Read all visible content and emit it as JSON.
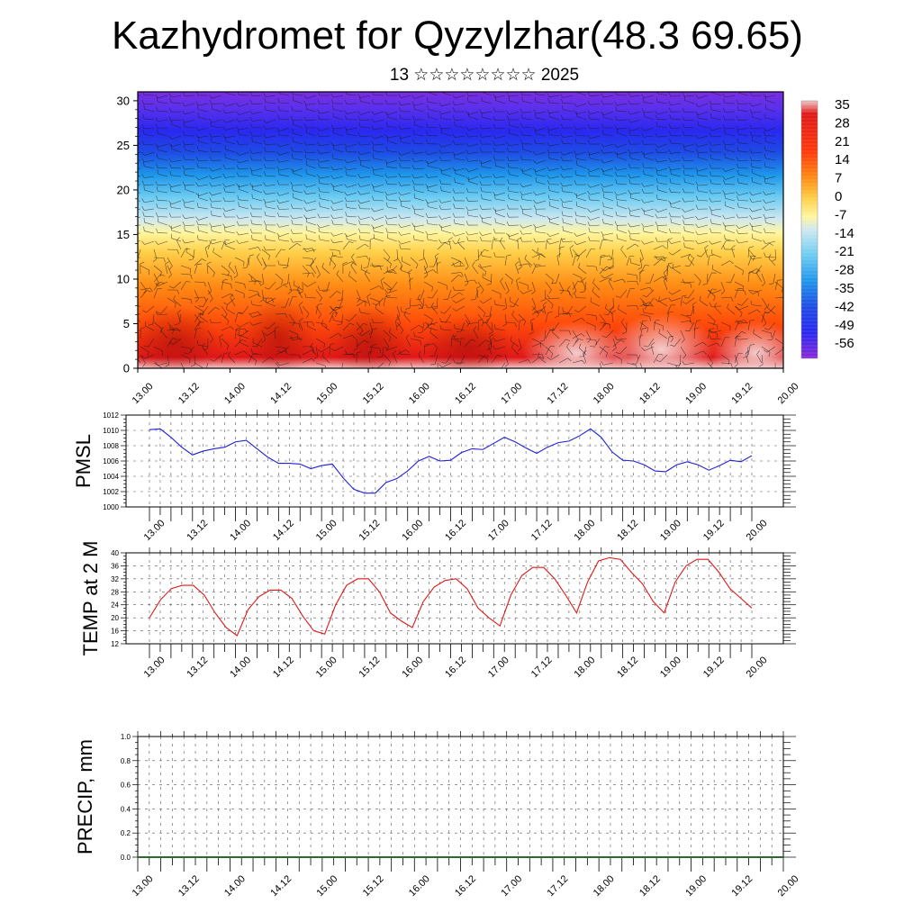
{
  "title": "Kazhydromet for Qyzylzhar(48.3 69.65)",
  "subtitle": "13 ☆☆☆☆☆☆☆☆ 2025",
  "chart_data": [
    {
      "type": "heatmap",
      "name": "Temperature / wind cross-section",
      "x_tick_labels": [
        "13.00",
        "13.12",
        "14.00",
        "14.12",
        "15.00",
        "15.12",
        "16.00",
        "16.12",
        "17.00",
        "17.12",
        "18.00",
        "18.12",
        "19.00",
        "19.12",
        "20.00"
      ],
      "y_tick_labels": [
        "0",
        "5",
        "10",
        "15",
        "20",
        "25",
        "30"
      ],
      "ylim": [
        0,
        31
      ],
      "colorbar_labels": [
        "35",
        "28",
        "21",
        "14",
        "7",
        "0",
        "-7",
        "-14",
        "-21",
        "-28",
        "-35",
        "-42",
        "-49",
        "-56"
      ],
      "colors": [
        "#f4d0d0",
        "#e8301c",
        "#ff7a12",
        "#ffd44a",
        "#fff8a0",
        "#cfe8f0",
        "#5cc8f0",
        "#1e8ce8",
        "#1e40e0",
        "#2a28f0",
        "#6a2ee8",
        "#8a2ad8"
      ],
      "wind_barbs": true
    },
    {
      "type": "line",
      "ylabel": "PMSL",
      "ylim": [
        1000,
        1012
      ],
      "y_tick_labels": [
        "1012",
        "1010",
        "1008",
        "1006",
        "1004",
        "1002",
        "1000"
      ],
      "x_tick_labels": [
        "13.00",
        "13.12",
        "14.00",
        "14.12",
        "15.00",
        "15.12",
        "16.00",
        "16.12",
        "17.00",
        "17.12",
        "18.00",
        "18.12",
        "19.00",
        "19.12",
        "20.00"
      ],
      "line_color": "#1f1fd8",
      "values": [
        1010.1,
        1010.2,
        1009.1,
        1007.8,
        1006.8,
        1007.3,
        1007.6,
        1007.8,
        1008.5,
        1008.7,
        1007.6,
        1006.5,
        1005.7,
        1005.7,
        1005.6,
        1005.0,
        1005.4,
        1005.6,
        1003.8,
        1002.3,
        1001.8,
        1001.8,
        1003.2,
        1003.7,
        1004.7,
        1006.0,
        1006.6,
        1006.0,
        1006.1,
        1007.1,
        1007.6,
        1007.5,
        1008.3,
        1009.1,
        1008.5,
        1007.7,
        1007.0,
        1007.8,
        1008.4,
        1008.6,
        1009.3,
        1010.2,
        1009.1,
        1007.2,
        1006.1,
        1006.0,
        1005.5,
        1004.7,
        1004.6,
        1005.5,
        1005.9,
        1005.5,
        1004.8,
        1005.4,
        1006.1,
        1005.9,
        1006.7
      ]
    },
    {
      "type": "line",
      "ylabel": "TEMP at 2 M",
      "ylim": [
        12,
        40
      ],
      "y_tick_labels": [
        "40",
        "36",
        "32",
        "28",
        "24",
        "20",
        "16",
        "12"
      ],
      "x_tick_labels": [
        "13.00",
        "13.12",
        "14.00",
        "14.12",
        "15.00",
        "15.12",
        "16.00",
        "16.12",
        "17.00",
        "17.12",
        "18.00",
        "18.12",
        "19.00",
        "19.12",
        "20.00"
      ],
      "line_color": "#e01818",
      "values": [
        20,
        25.5,
        29,
        30,
        30,
        27,
        21.5,
        17,
        14.5,
        22.5,
        26.5,
        28.5,
        28.5,
        26,
        20.5,
        16,
        15,
        24,
        30,
        32,
        32,
        28,
        21.5,
        19,
        17,
        25,
        29.5,
        31.5,
        32,
        29,
        23,
        20,
        17.5,
        27,
        33,
        35.5,
        35.5,
        32,
        27,
        21.5,
        31,
        37.5,
        38.5,
        38,
        34,
        30.5,
        25,
        21.5,
        31,
        36,
        38,
        38,
        34,
        29,
        26,
        23
      ]
    },
    {
      "type": "line",
      "ylabel": "PRECIP, mm",
      "ylim": [
        0,
        1
      ],
      "y_tick_labels": [
        "1.0",
        "0.8",
        "0.6",
        "0.4",
        "0.2",
        "0.0"
      ],
      "x_tick_labels": [
        "13.00",
        "13.12",
        "14.00",
        "14.12",
        "15.00",
        "15.12",
        "16.00",
        "16.12",
        "17.00",
        "17.12",
        "18.00",
        "18.12",
        "19.00",
        "19.12",
        "20.00"
      ],
      "line_color": "#2a6a2a",
      "values": [
        0,
        0,
        0,
        0,
        0,
        0,
        0,
        0,
        0,
        0,
        0,
        0,
        0,
        0,
        0,
        0,
        0,
        0,
        0,
        0,
        0,
        0,
        0,
        0,
        0,
        0,
        0,
        0,
        0,
        0,
        0,
        0,
        0,
        0,
        0,
        0,
        0,
        0,
        0,
        0,
        0,
        0,
        0,
        0,
        0,
        0,
        0,
        0,
        0,
        0,
        0,
        0,
        0,
        0,
        0,
        0,
        0
      ]
    }
  ]
}
